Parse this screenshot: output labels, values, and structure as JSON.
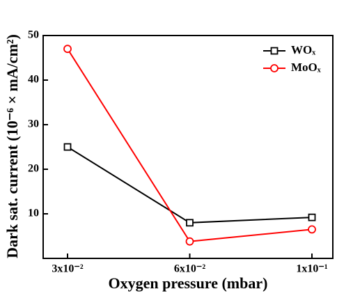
{
  "chart_data": {
    "type": "line",
    "x_label": "Oxygen pressure (mbar)",
    "y_label": "Dark sat. current (10⁻⁶ × mA/cm²)",
    "categories": [
      "3x10⁻²",
      "6x10⁻²",
      "1x10⁻¹"
    ],
    "series": [
      {
        "name": "WOₓ",
        "color": "#000000",
        "marker": "square",
        "values": [
          25,
          8,
          9.2
        ]
      },
      {
        "name": "MoOₓ",
        "color": "#ff0000",
        "marker": "circle",
        "values": [
          47,
          3.8,
          6.5
        ]
      }
    ],
    "ylim": [
      0,
      50
    ],
    "yticks": [
      10,
      20,
      30,
      40,
      50
    ],
    "legend": "upper right"
  }
}
